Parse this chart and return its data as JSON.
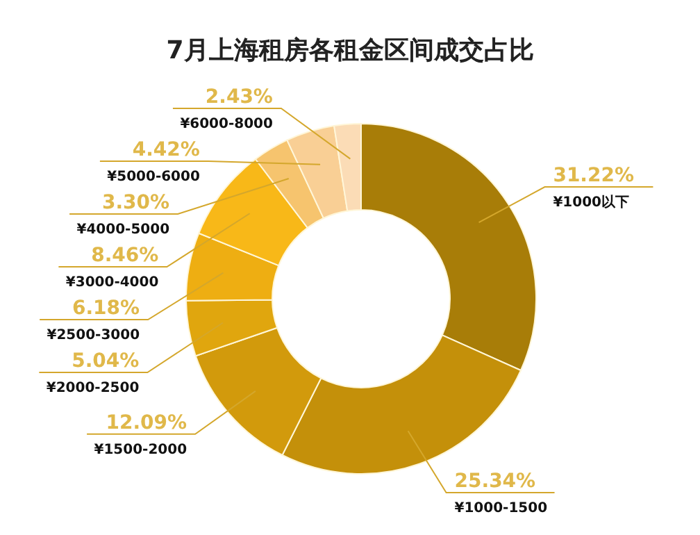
{
  "chart_data": {
    "type": "donut",
    "title": "7月上海租房各租金区间成交占比",
    "categories": [
      "¥1000以下",
      "¥1000-1500",
      "¥1500-2000",
      "¥2000-2500",
      "¥2500-3000",
      "¥3000-4000",
      "¥4000-5000",
      "¥5000-6000",
      "¥6000-8000"
    ],
    "values": [
      31.22,
      25.34,
      12.09,
      5.04,
      6.18,
      8.46,
      3.3,
      4.42,
      2.43
    ],
    "value_labels": [
      "31.22%",
      "25.34%",
      "12.09%",
      "5.04%",
      "6.18%",
      "8.46%",
      "3.30%",
      "4.42%",
      "2.43%"
    ],
    "colors": [
      "#a87d08",
      "#c4900a",
      "#d29a0c",
      "#e0a60e",
      "#eeae12",
      "#f8b818",
      "#f6c46e",
      "#f9cf95",
      "#fbdcb6"
    ]
  }
}
